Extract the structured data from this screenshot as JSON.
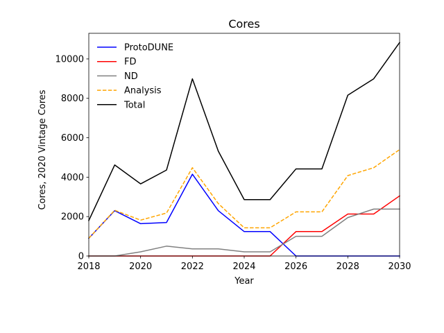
{
  "chart_data": {
    "type": "line",
    "title": "Cores",
    "xlabel": "Year",
    "ylabel": "Cores, 2020 Vintage Cores",
    "xlim": [
      2018,
      2030
    ],
    "ylim": [
      0,
      11300
    ],
    "xticks": [
      2018,
      2020,
      2022,
      2024,
      2026,
      2028,
      2030
    ],
    "yticks": [
      0,
      2000,
      4000,
      6000,
      8000,
      10000
    ],
    "legend_position": "top-left",
    "grid": false,
    "x": [
      2018,
      2019,
      2020,
      2021,
      2022,
      2023,
      2024,
      2025,
      2026,
      2027,
      2028,
      2029,
      2030
    ],
    "series": [
      {
        "name": "ProtoDUNE",
        "color": "#0000ff",
        "dash": "solid",
        "values": [
          900,
          2300,
          1640,
          1700,
          4150,
          2300,
          1240,
          1240,
          0,
          0,
          0,
          0,
          0
        ]
      },
      {
        "name": "FD",
        "color": "#ff0000",
        "dash": "solid",
        "values": [
          0,
          0,
          0,
          0,
          0,
          0,
          0,
          0,
          1240,
          1240,
          2130,
          2130,
          3050
        ]
      },
      {
        "name": "ND",
        "color": "#808080",
        "dash": "solid",
        "values": [
          0,
          0,
          210,
          500,
          360,
          360,
          210,
          210,
          1000,
          1000,
          1950,
          2380,
          2380
        ]
      },
      {
        "name": "Analysis",
        "color": "#ffa500",
        "dash": "dashed",
        "values": [
          900,
          2320,
          1820,
          2180,
          4480,
          2660,
          1430,
          1430,
          2240,
          2240,
          4080,
          4480,
          5400
        ]
      },
      {
        "name": "Total",
        "color": "#000000",
        "dash": "solid",
        "values": [
          1800,
          4620,
          3660,
          4360,
          8990,
          5320,
          2860,
          2860,
          4420,
          4420,
          8160,
          8990,
          10830
        ]
      }
    ]
  }
}
